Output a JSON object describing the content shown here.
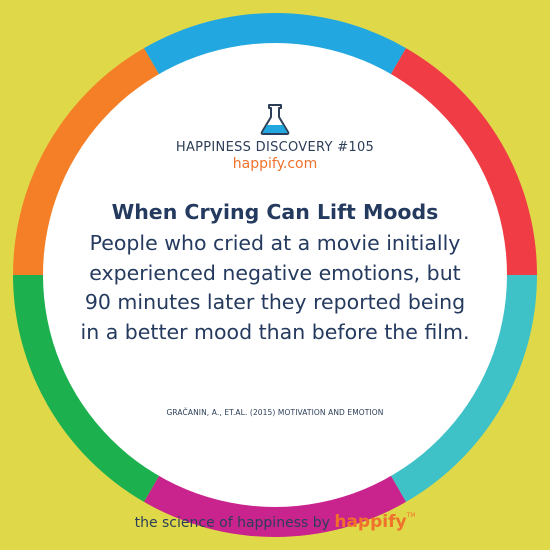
{
  "colors": {
    "background": "#dfd94a",
    "circle_fill": "#ffffff",
    "text_dark": "#243a5e",
    "brand_orange": "#f0712b",
    "ring_segments": [
      "#f57f27",
      "#23a7e0",
      "#ef3c45",
      "#3fc1c8",
      "#c9238d",
      "#1db04e"
    ]
  },
  "header": {
    "icon": "flask-icon",
    "eyebrow": "HAPPINESS DISCOVERY #105",
    "site": "happify.com"
  },
  "main": {
    "headline": "When Crying Can Lift Moods",
    "body": "People who cried at a movie initially experienced negative emotions, but 90 minutes later they reported being in a better mood than before the film.",
    "citation": "GRAČANIN, A., ET.AL. (2015) MOTIVATION AND EMOTION"
  },
  "footer": {
    "tagline": "the science of happiness by",
    "brand": "happify",
    "tm": "TM"
  }
}
